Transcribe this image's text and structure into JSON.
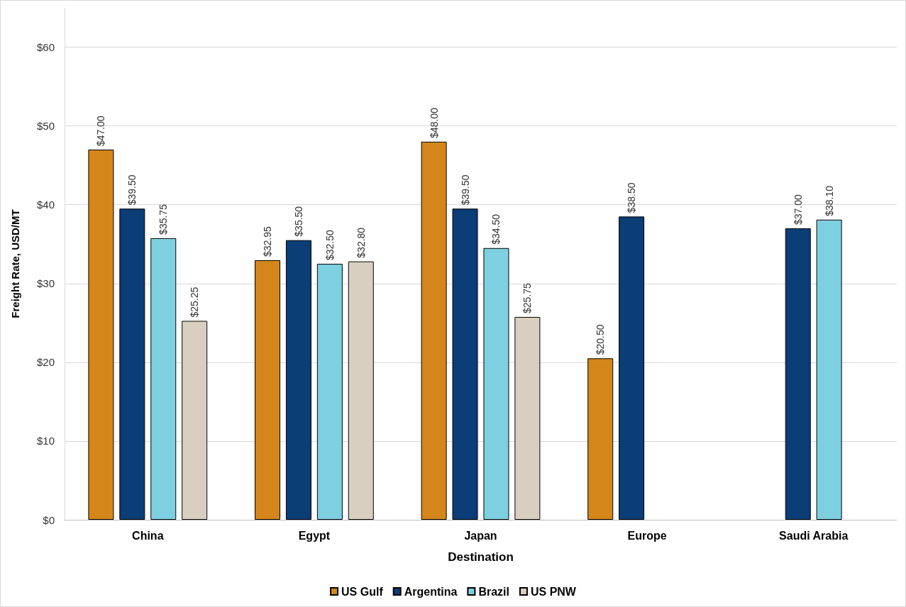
{
  "chart_data": {
    "type": "bar",
    "xlabel": "Destination",
    "ylabel": "Freight Rate, USD/MT",
    "categories": [
      "China",
      "Egypt",
      "Japan",
      "Europe",
      "Saudi Arabia"
    ],
    "series": [
      {
        "name": "US Gulf",
        "color": "#d4861a",
        "values": [
          47.0,
          32.95,
          48.0,
          20.5,
          null
        ],
        "value_labels": [
          "$47.00",
          "$32.95",
          "$48.00",
          "$20.50",
          null
        ]
      },
      {
        "name": "Argentina",
        "color": "#0b3d77",
        "values": [
          39.5,
          35.5,
          39.5,
          38.5,
          37.0
        ],
        "value_labels": [
          "$39.50",
          "$35.50",
          "$39.50",
          "$38.50",
          "$37.00"
        ]
      },
      {
        "name": "Brazil",
        "color": "#7ecfe0",
        "values": [
          35.75,
          32.5,
          34.5,
          null,
          38.1
        ],
        "value_labels": [
          "$35.75",
          "$32.50",
          "$34.50",
          null,
          "$38.10"
        ]
      },
      {
        "name": "US PNW",
        "color": "#d9cfc0",
        "values": [
          25.25,
          32.8,
          25.75,
          null,
          null
        ],
        "value_labels": [
          "$25.25",
          "$32.80",
          "$25.75",
          null,
          null
        ]
      }
    ],
    "ylim": [
      0,
      65
    ],
    "yticks": [
      {
        "value": 0,
        "label": "$0"
      },
      {
        "value": 10,
        "label": "$10"
      },
      {
        "value": 20,
        "label": "$20"
      },
      {
        "value": 30,
        "label": "$30"
      },
      {
        "value": 40,
        "label": "$40"
      },
      {
        "value": 50,
        "label": "$50"
      },
      {
        "value": 60,
        "label": "$60"
      }
    ],
    "grid": "y",
    "legend": "bottom"
  }
}
